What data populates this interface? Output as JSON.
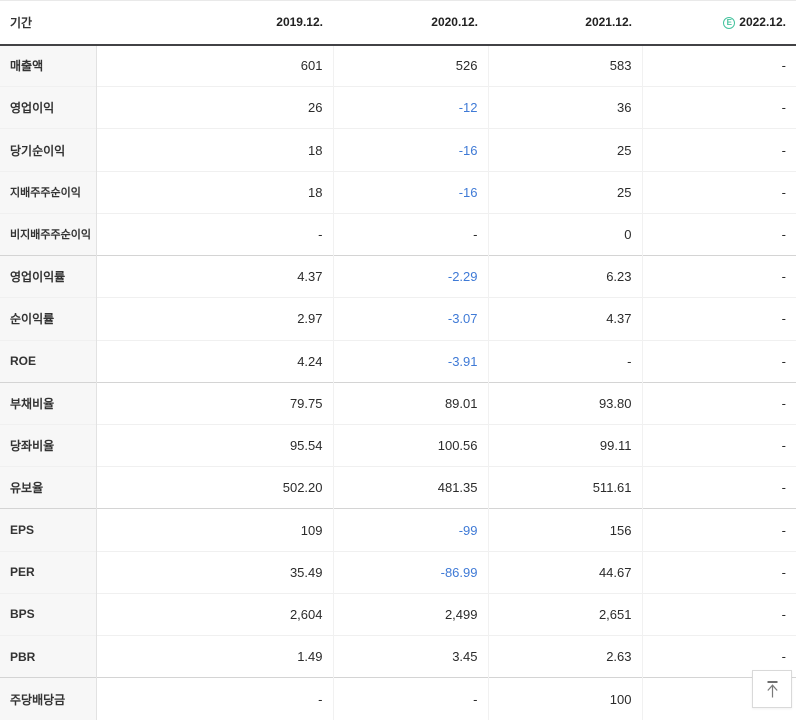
{
  "colors": {
    "negative_value": "#3f7ad6",
    "estimate_badge": "#45c39e"
  },
  "table": {
    "period_label": "기간",
    "columns": [
      "2019.12.",
      "2020.12.",
      "2021.12.",
      "2022.12."
    ],
    "estimate_badge": "E",
    "rows": [
      {
        "label": "매출액",
        "values": [
          "601",
          "526",
          "583",
          "-"
        ],
        "sub": false,
        "group_start": false
      },
      {
        "label": "영업이익",
        "values": [
          "26",
          "-12",
          "36",
          "-"
        ],
        "sub": false,
        "group_start": false
      },
      {
        "label": "당기순이익",
        "values": [
          "18",
          "-16",
          "25",
          "-"
        ],
        "sub": false,
        "group_start": false
      },
      {
        "label": "지배주주순이익",
        "values": [
          "18",
          "-16",
          "25",
          "-"
        ],
        "sub": true,
        "group_start": false
      },
      {
        "label": "비지배주주순이익",
        "values": [
          "-",
          "-",
          "0",
          "-"
        ],
        "sub": true,
        "group_start": false
      },
      {
        "label": "영업이익률",
        "values": [
          "4.37",
          "-2.29",
          "6.23",
          "-"
        ],
        "sub": false,
        "group_start": true
      },
      {
        "label": "순이익률",
        "values": [
          "2.97",
          "-3.07",
          "4.37",
          "-"
        ],
        "sub": false,
        "group_start": false
      },
      {
        "label": "ROE",
        "values": [
          "4.24",
          "-3.91",
          "-",
          "-"
        ],
        "sub": false,
        "group_start": false
      },
      {
        "label": "부채비율",
        "values": [
          "79.75",
          "89.01",
          "93.80",
          "-"
        ],
        "sub": false,
        "group_start": true
      },
      {
        "label": "당좌비율",
        "values": [
          "95.54",
          "100.56",
          "99.11",
          "-"
        ],
        "sub": false,
        "group_start": false
      },
      {
        "label": "유보율",
        "values": [
          "502.20",
          "481.35",
          "511.61",
          "-"
        ],
        "sub": false,
        "group_start": false
      },
      {
        "label": "EPS",
        "values": [
          "109",
          "-99",
          "156",
          "-"
        ],
        "sub": false,
        "group_start": true
      },
      {
        "label": "PER",
        "values": [
          "35.49",
          "-86.99",
          "44.67",
          "-"
        ],
        "sub": false,
        "group_start": false
      },
      {
        "label": "BPS",
        "values": [
          "2,604",
          "2,499",
          "2,651",
          "-"
        ],
        "sub": false,
        "group_start": false
      },
      {
        "label": "PBR",
        "values": [
          "1.49",
          "3.45",
          "2.63",
          "-"
        ],
        "sub": false,
        "group_start": false
      },
      {
        "label": "주당배당금",
        "values": [
          "-",
          "-",
          "100",
          "-"
        ],
        "sub": false,
        "group_start": true
      }
    ]
  },
  "scroll_top_button": {
    "name": "scroll-to-top"
  }
}
